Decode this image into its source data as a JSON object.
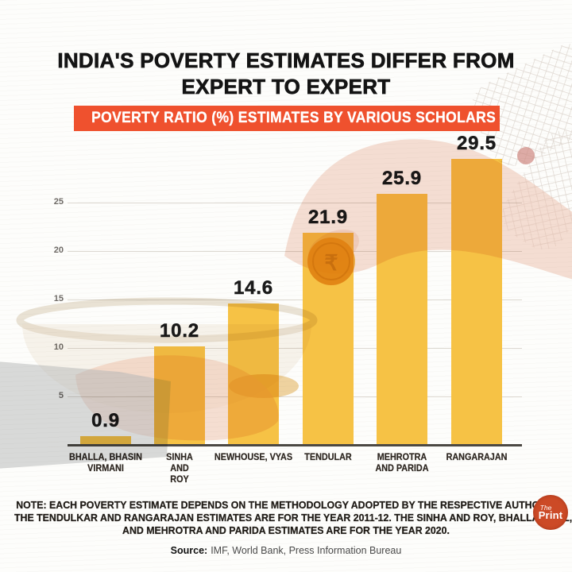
{
  "title": {
    "line1": "INDIA'S POVERTY ESTIMATES DIFFER FROM",
    "line2": "EXPERT TO EXPERT"
  },
  "banner": {
    "label": "POVERTY RATIO (%) ESTIMATES BY VARIOUS SCHOLARS",
    "bg": "#EF512E"
  },
  "chart_data": {
    "type": "bar",
    "title": "POVERTY RATIO (%) ESTIMATES BY VARIOUS SCHOLARS",
    "categories": [
      "BHALLA, BHASIN VIRMANI",
      "SINHA AND ROY",
      "NEWHOUSE, VYAS",
      "TENDULAR",
      "MEHROTRA AND PARIDA",
      "RANGARAJAN"
    ],
    "category_lines": [
      [
        "BHALLA, BHASIN",
        "VIRMANI"
      ],
      [
        "SINHA",
        "AND",
        "ROY"
      ],
      [
        "NEWHOUSE, VYAS"
      ],
      [
        "TENDULAR"
      ],
      [
        "MEHROTRA",
        "AND PARIDA"
      ],
      [
        "RANGARAJAN"
      ]
    ],
    "values": [
      0.9,
      10.2,
      14.6,
      21.9,
      25.9,
      29.5
    ],
    "value_labels": [
      "0.9",
      "10.2",
      "14.6",
      "21.9",
      "25.9",
      "29.5"
    ],
    "xlabel": "",
    "ylabel": "",
    "yticks": [
      5,
      10,
      15,
      20,
      25
    ],
    "ylim": [
      0,
      31
    ],
    "grid": true,
    "legend": "none",
    "bar_color": "#F6C245",
    "gridline_color": "#dcd8d1",
    "axis_color": "#4b4843"
  },
  "note": {
    "lines": [
      "NOTE: EACH POVERTY ESTIMATE DEPENDS ON THE METHODOLOGY ADOPTED BY THE RESPECTIVE AUTHORS.",
      "THE TENDULKAR AND RANGARAJAN ESTIMATES ARE FOR THE YEAR 2011-12. THE SINHA AND ROY, BHALLA ET AL,",
      "AND MEHROTRA AND PARIDA ESTIMATES ARE FOR THE YEAR 2020."
    ]
  },
  "source": {
    "label": "Source:",
    "text": "IMF, World Bank, Press Information Bureau"
  },
  "logo": {
    "top": "The",
    "bottom": "Print",
    "bg": "#CC4A26"
  },
  "decor": {
    "icons": [
      "begging-bowl-icon",
      "begging-hand-icon",
      "sleeve-icon",
      "giving-hand-icon",
      "rupee-coin-icon",
      "checkered-cloth-icon",
      "faded-red-dot-icon"
    ],
    "coin_symbol": "₹"
  }
}
